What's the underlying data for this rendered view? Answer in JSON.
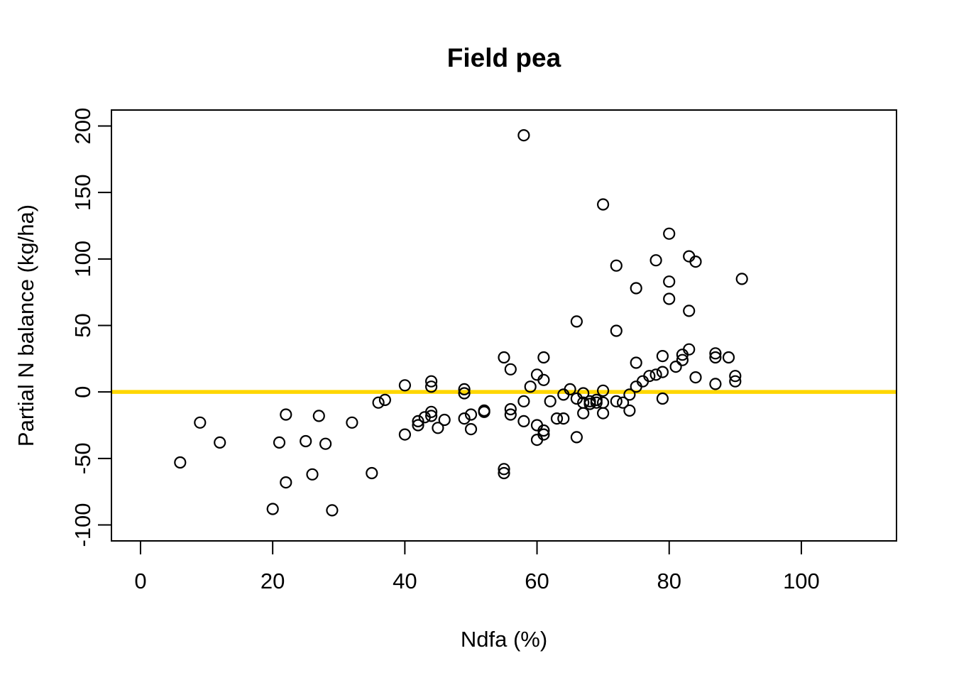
{
  "chart_data": {
    "type": "scatter",
    "title": "Field pea",
    "xlabel": "Ndfa (%)",
    "ylabel": "Partial N balance (kg/ha)",
    "x_ticks": [
      0,
      20,
      40,
      60,
      80,
      100
    ],
    "y_ticks": [
      -100,
      -50,
      0,
      50,
      100,
      150,
      200
    ],
    "xlim": [
      -4.4,
      114.4
    ],
    "ylim": [
      -112,
      212
    ],
    "grid": false,
    "legend": null,
    "reference_line": {
      "y": 0,
      "color": "#FFD700",
      "stroke_width": 5.5
    },
    "point_style": {
      "shape": "open-circle",
      "stroke": "#000000",
      "fill": "none",
      "radius": 7.5,
      "stroke_width": 2.2
    },
    "frame_color": "#000000",
    "background_color": "#FFFFFF",
    "points": [
      [
        6,
        -53
      ],
      [
        9,
        -23
      ],
      [
        12,
        -38
      ],
      [
        20,
        -88
      ],
      [
        21,
        -38
      ],
      [
        22,
        -17
      ],
      [
        22,
        -68
      ],
      [
        25,
        -37
      ],
      [
        26,
        -62
      ],
      [
        27,
        -18
      ],
      [
        28,
        -39
      ],
      [
        29,
        -89
      ],
      [
        32,
        -23
      ],
      [
        35,
        -61
      ],
      [
        36,
        -8
      ],
      [
        37,
        -6
      ],
      [
        40,
        5
      ],
      [
        40,
        -32
      ],
      [
        42,
        -25
      ],
      [
        42,
        -22
      ],
      [
        43,
        -19
      ],
      [
        44,
        8
      ],
      [
        44,
        4
      ],
      [
        44,
        -15
      ],
      [
        44,
        -18
      ],
      [
        45,
        -27
      ],
      [
        46,
        -21
      ],
      [
        49,
        2
      ],
      [
        49,
        -1
      ],
      [
        49,
        -20
      ],
      [
        50,
        -17
      ],
      [
        50,
        -28
      ],
      [
        52,
        -14
      ],
      [
        52,
        -15
      ],
      [
        55,
        26
      ],
      [
        55,
        -58
      ],
      [
        55,
        -61
      ],
      [
        56,
        17
      ],
      [
        56,
        -13
      ],
      [
        56,
        -17
      ],
      [
        58,
        193
      ],
      [
        58,
        -7
      ],
      [
        58,
        -22
      ],
      [
        59,
        4
      ],
      [
        60,
        13
      ],
      [
        60,
        -25
      ],
      [
        60,
        -36
      ],
      [
        61,
        26
      ],
      [
        61,
        9
      ],
      [
        61,
        -29
      ],
      [
        61,
        -32
      ],
      [
        62,
        -7
      ],
      [
        63,
        -20
      ],
      [
        64,
        -20
      ],
      [
        64,
        -2
      ],
      [
        65,
        2
      ],
      [
        66,
        53
      ],
      [
        66,
        -5
      ],
      [
        66,
        -34
      ],
      [
        67,
        -1
      ],
      [
        67,
        -8
      ],
      [
        67,
        -16
      ],
      [
        68,
        -7
      ],
      [
        68,
        -9
      ],
      [
        69,
        -6
      ],
      [
        69,
        -8
      ],
      [
        70,
        141
      ],
      [
        70,
        1
      ],
      [
        70,
        -8
      ],
      [
        70,
        -16
      ],
      [
        72,
        95
      ],
      [
        72,
        46
      ],
      [
        72,
        -7
      ],
      [
        73,
        -8
      ],
      [
        74,
        -2
      ],
      [
        74,
        -14
      ],
      [
        75,
        78
      ],
      [
        75,
        22
      ],
      [
        75,
        4
      ],
      [
        76,
        8
      ],
      [
        77,
        12
      ],
      [
        78,
        99
      ],
      [
        78,
        13
      ],
      [
        79,
        27
      ],
      [
        79,
        15
      ],
      [
        79,
        -5
      ],
      [
        80,
        119
      ],
      [
        80,
        83
      ],
      [
        80,
        70
      ],
      [
        81,
        19
      ],
      [
        82,
        28
      ],
      [
        82,
        24
      ],
      [
        83,
        102
      ],
      [
        83,
        61
      ],
      [
        83,
        32
      ],
      [
        84,
        98
      ],
      [
        84,
        11
      ],
      [
        87,
        29
      ],
      [
        87,
        26
      ],
      [
        87,
        6
      ],
      [
        89,
        26
      ],
      [
        90,
        12
      ],
      [
        90,
        8
      ],
      [
        91,
        85
      ]
    ]
  }
}
